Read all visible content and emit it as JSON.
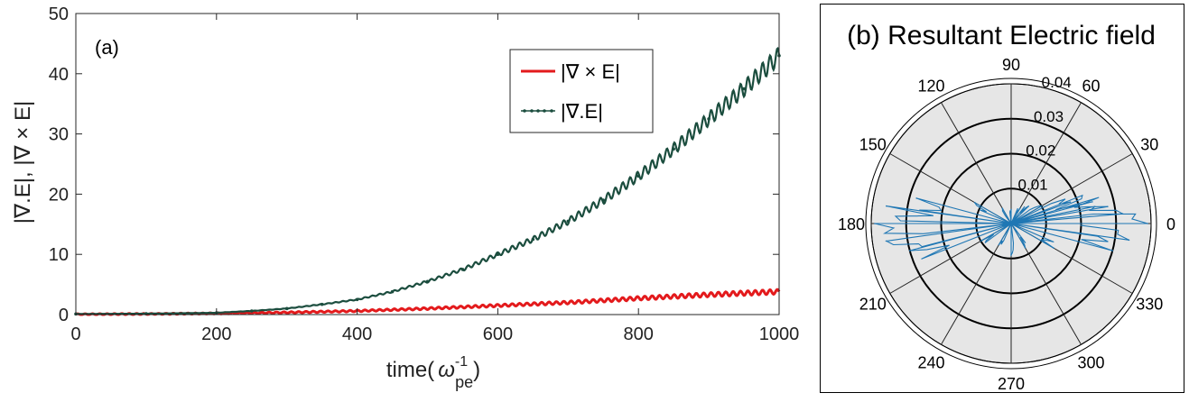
{
  "chart_data": [
    {
      "type": "line",
      "panel_label": "(a)",
      "xlabel_base": "time(",
      "xlabel_symbol": "ω",
      "xlabel_sup": "-1",
      "xlabel_sub": "pe",
      "xlabel_close": ")",
      "ylabel": "|∇.E|, |∇ × E|",
      "xlim": [
        0,
        1000
      ],
      "ylim": [
        0,
        50
      ],
      "xticks": [
        0,
        200,
        400,
        600,
        800,
        1000
      ],
      "yticks": [
        0,
        10,
        20,
        30,
        40,
        50
      ],
      "legend_position": "top-right",
      "series": [
        {
          "name": "|∇ × E|",
          "color": "#e31a1c",
          "x": [
            0,
            100,
            200,
            300,
            400,
            500,
            600,
            700,
            800,
            900,
            1000
          ],
          "values": [
            0.05,
            0.1,
            0.2,
            0.35,
            0.6,
            1.0,
            1.5,
            2.0,
            2.7,
            3.3,
            3.8
          ]
        },
        {
          "name": "|∇.E|",
          "color": "#1b4d3e",
          "x": [
            0,
            100,
            200,
            250,
            300,
            350,
            400,
            450,
            500,
            550,
            600,
            650,
            700,
            750,
            800,
            850,
            900,
            950,
            1000
          ],
          "values": [
            0.1,
            0.15,
            0.3,
            0.6,
            1.0,
            1.7,
            2.5,
            3.8,
            5.5,
            7.5,
            10.0,
            12.5,
            15.5,
            19.0,
            23.0,
            27.5,
            32.5,
            37.5,
            43.0
          ]
        }
      ]
    },
    {
      "type": "polar",
      "title": "(b) Resultant Electric field",
      "angle_labels": [
        "0",
        "30",
        "60",
        "90",
        "120",
        "150",
        "180",
        "210",
        "240",
        "270",
        "300",
        "330"
      ],
      "radial_ticks": [
        0.01,
        0.02,
        0.03,
        0.04
      ],
      "radial_tick_labels": [
        "0.01",
        "0.02",
        "0.03",
        "0.04"
      ],
      "rmax": 0.04,
      "series_color": "#1f77b4",
      "rose": [
        {
          "angle": 0,
          "r": 0.039
        },
        {
          "angle": 5,
          "r": 0.032
        },
        {
          "angle": 10,
          "r": 0.028
        },
        {
          "angle": 15,
          "r": 0.024
        },
        {
          "angle": 20,
          "r": 0.018
        },
        {
          "angle": 30,
          "r": 0.01
        },
        {
          "angle": 45,
          "r": 0.007
        },
        {
          "angle": 60,
          "r": 0.005
        },
        {
          "angle": 90,
          "r": 0.004
        },
        {
          "angle": 120,
          "r": 0.005
        },
        {
          "angle": 150,
          "r": 0.012
        },
        {
          "angle": 165,
          "r": 0.028
        },
        {
          "angle": 172,
          "r": 0.036
        },
        {
          "angle": 180,
          "r": 0.039
        },
        {
          "angle": 188,
          "r": 0.036
        },
        {
          "angle": 195,
          "r": 0.03
        },
        {
          "angle": 210,
          "r": 0.01
        },
        {
          "angle": 240,
          "r": 0.007
        },
        {
          "angle": 270,
          "r": 0.009
        },
        {
          "angle": 300,
          "r": 0.008
        },
        {
          "angle": 330,
          "r": 0.014
        },
        {
          "angle": 345,
          "r": 0.03
        },
        {
          "angle": 352,
          "r": 0.034
        }
      ]
    }
  ]
}
